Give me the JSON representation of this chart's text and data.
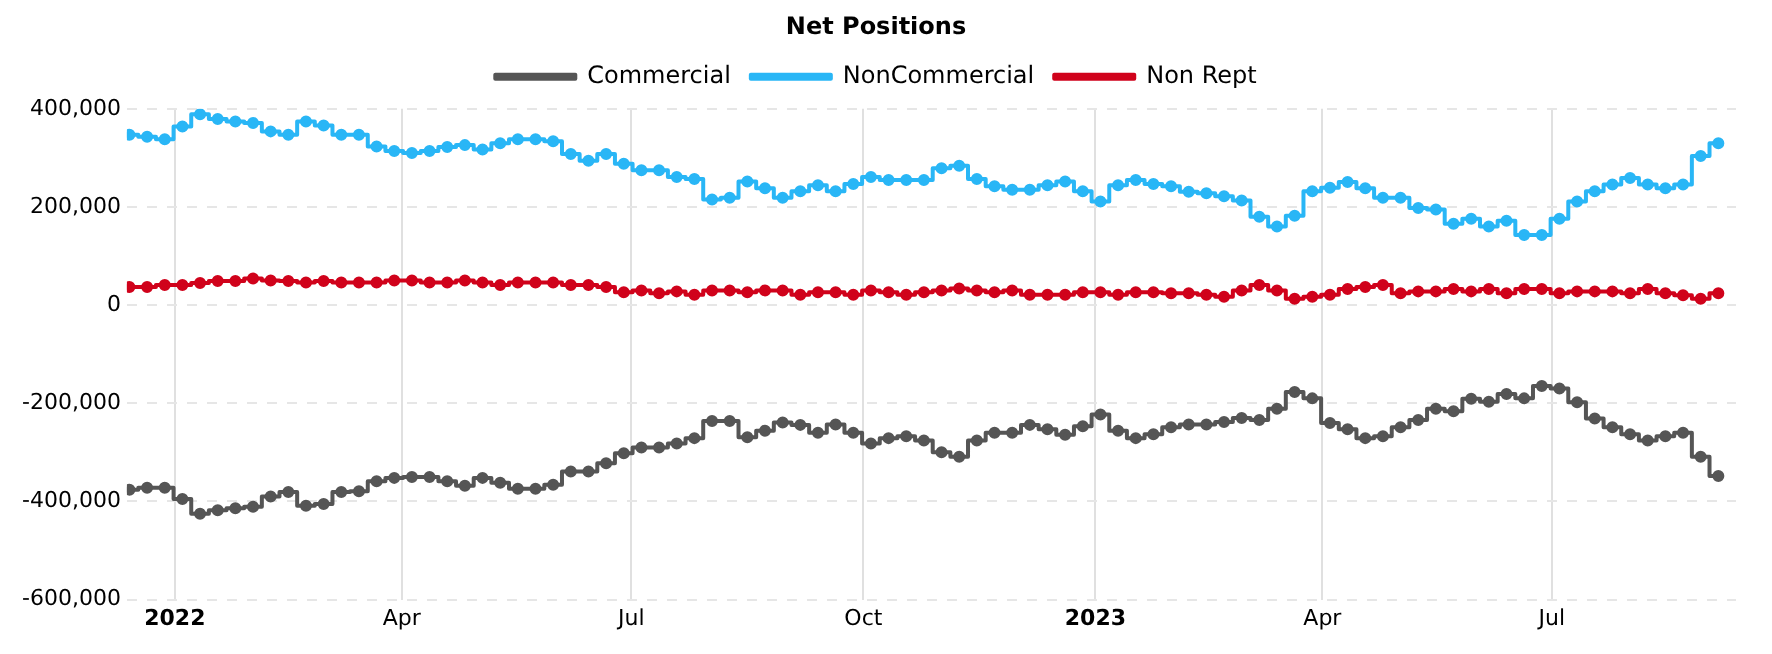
{
  "chart_data": {
    "type": "step",
    "legend_title": "Net Positions",
    "legend": "top",
    "grid": true,
    "marker": "circle",
    "line_style": "solid",
    "x": [
      "2021-12-14",
      "2021-12-21",
      "2021-12-28",
      "2022-01-04",
      "2022-01-11",
      "2022-01-18",
      "2022-01-25",
      "2022-02-01",
      "2022-02-08",
      "2022-02-15",
      "2022-02-22",
      "2022-03-01",
      "2022-03-08",
      "2022-03-15",
      "2022-03-22",
      "2022-03-29",
      "2022-04-05",
      "2022-04-12",
      "2022-04-19",
      "2022-04-26",
      "2022-05-03",
      "2022-05-10",
      "2022-05-17",
      "2022-05-24",
      "2022-05-31",
      "2022-06-07",
      "2022-06-14",
      "2022-06-21",
      "2022-06-28",
      "2022-07-05",
      "2022-07-12",
      "2022-07-19",
      "2022-07-26",
      "2022-08-02",
      "2022-08-09",
      "2022-08-16",
      "2022-08-23",
      "2022-08-30",
      "2022-09-06",
      "2022-09-13",
      "2022-09-20",
      "2022-09-27",
      "2022-10-04",
      "2022-10-11",
      "2022-10-18",
      "2022-10-25",
      "2022-11-01",
      "2022-11-08",
      "2022-11-15",
      "2022-11-22",
      "2022-11-29",
      "2022-12-06",
      "2022-12-13",
      "2022-12-20",
      "2022-12-27",
      "2023-01-03",
      "2023-01-10",
      "2023-01-17",
      "2023-01-24",
      "2023-01-31",
      "2023-02-07",
      "2023-02-14",
      "2023-02-21",
      "2023-02-28",
      "2023-03-07",
      "2023-03-14",
      "2023-03-21",
      "2023-03-28",
      "2023-04-04",
      "2023-04-11",
      "2023-04-18",
      "2023-04-25",
      "2023-05-02",
      "2023-05-09",
      "2023-05-16",
      "2023-05-23",
      "2023-05-30",
      "2023-06-06",
      "2023-06-13",
      "2023-06-20",
      "2023-06-27",
      "2023-07-04",
      "2023-07-11",
      "2023-07-18",
      "2023-07-25",
      "2023-08-01",
      "2023-08-08",
      "2023-08-15",
      "2023-08-22",
      "2023-08-29",
      "2023-09-05"
    ],
    "xlim": [
      "2021-12-13",
      "2023-09-12"
    ],
    "xticks": [
      {
        "value": "2022-01-01",
        "label": "2022"
      },
      {
        "value": "2022-04-01",
        "label": "Apr"
      },
      {
        "value": "2022-07-01",
        "label": "Jul"
      },
      {
        "value": "2022-10-01",
        "label": "Oct"
      },
      {
        "value": "2023-01-01",
        "label": "2023"
      },
      {
        "value": "2023-04-01",
        "label": "Apr"
      },
      {
        "value": "2023-07-01",
        "label": "Jul"
      }
    ],
    "ylim": [
      -600000,
      400000
    ],
    "yticks": [
      {
        "value": -600000,
        "label": "-600,000"
      },
      {
        "value": -400000,
        "label": "-400,000"
      },
      {
        "value": -200000,
        "label": "-200,000"
      },
      0,
      {
        "value": 200000,
        "label": "200,000"
      },
      {
        "value": 400000,
        "label": "400,000"
      }
    ],
    "series": [
      {
        "name": "Commercial",
        "color": "#555555",
        "values": [
          -376000,
          -372000,
          -372000,
          -395000,
          -425000,
          -418000,
          -414000,
          -411000,
          -390000,
          -381000,
          -409000,
          -405000,
          -381000,
          -379000,
          -359000,
          -352000,
          -350000,
          -350000,
          -359000,
          -368000,
          -352000,
          -362000,
          -374000,
          -374000,
          -366000,
          -339000,
          -339000,
          -322000,
          -302000,
          -290000,
          -290000,
          -282000,
          -271000,
          -236000,
          -236000,
          -269000,
          -256000,
          -239000,
          -244000,
          -260000,
          -243000,
          -260000,
          -282000,
          -271000,
          -267000,
          -276000,
          -300000,
          -309000,
          -276000,
          -260000,
          -260000,
          -244000,
          -253000,
          -264000,
          -247000,
          -223000,
          -256000,
          -271000,
          -263000,
          -249000,
          -243000,
          -243000,
          -238000,
          -230000,
          -234000,
          -211000,
          -177000,
          -190000,
          -240000,
          -253000,
          -271000,
          -267000,
          -249000,
          -234000,
          -211000,
          -216000,
          -191000,
          -197000,
          -181000,
          -190000,
          -165000,
          -170000,
          -198000,
          -231000,
          -249000,
          -263000,
          -276000,
          -267000,
          -260000,
          -309000,
          -348000
        ]
      },
      {
        "name": "NonCommercial",
        "color": "#29b6f6",
        "values": [
          347000,
          343000,
          338000,
          364000,
          389000,
          379000,
          374000,
          371000,
          354000,
          347000,
          374000,
          366000,
          347000,
          347000,
          323000,
          314000,
          310000,
          314000,
          322000,
          326000,
          317000,
          330000,
          338000,
          338000,
          334000,
          308000,
          294000,
          308000,
          288000,
          275000,
          275000,
          261000,
          257000,
          215000,
          219000,
          252000,
          238000,
          219000,
          232000,
          244000,
          232000,
          247000,
          261000,
          255000,
          255000,
          255000,
          279000,
          284000,
          257000,
          242000,
          235000,
          235000,
          244000,
          252000,
          232000,
          211000,
          244000,
          255000,
          247000,
          242000,
          231000,
          228000,
          222000,
          213000,
          180000,
          160000,
          182000,
          232000,
          239000,
          251000,
          238000,
          219000,
          219000,
          198000,
          195000,
          166000,
          176000,
          160000,
          172000,
          143000,
          143000,
          176000,
          211000,
          232000,
          246000,
          259000,
          246000,
          238000,
          246000,
          304000,
          330000
        ]
      },
      {
        "name": "Non Rept",
        "color": "#d0021b",
        "values": [
          37000,
          37000,
          41000,
          41000,
          45000,
          49000,
          49000,
          54000,
          50000,
          49000,
          46000,
          49000,
          46000,
          46000,
          46000,
          50000,
          50000,
          46000,
          46000,
          50000,
          46000,
          41000,
          46000,
          46000,
          46000,
          41000,
          41000,
          37000,
          26000,
          30000,
          24000,
          28000,
          21000,
          30000,
          30000,
          26000,
          30000,
          30000,
          21000,
          26000,
          26000,
          21000,
          30000,
          26000,
          21000,
          26000,
          30000,
          34000,
          30000,
          26000,
          30000,
          21000,
          21000,
          21000,
          26000,
          26000,
          21000,
          26000,
          26000,
          24000,
          24000,
          21000,
          17000,
          30000,
          41000,
          30000,
          13000,
          17000,
          21000,
          33000,
          37000,
          41000,
          24000,
          28000,
          28000,
          33000,
          28000,
          33000,
          24000,
          33000,
          33000,
          24000,
          28000,
          28000,
          28000,
          24000,
          33000,
          24000,
          20000,
          13000,
          24000
        ]
      }
    ]
  }
}
